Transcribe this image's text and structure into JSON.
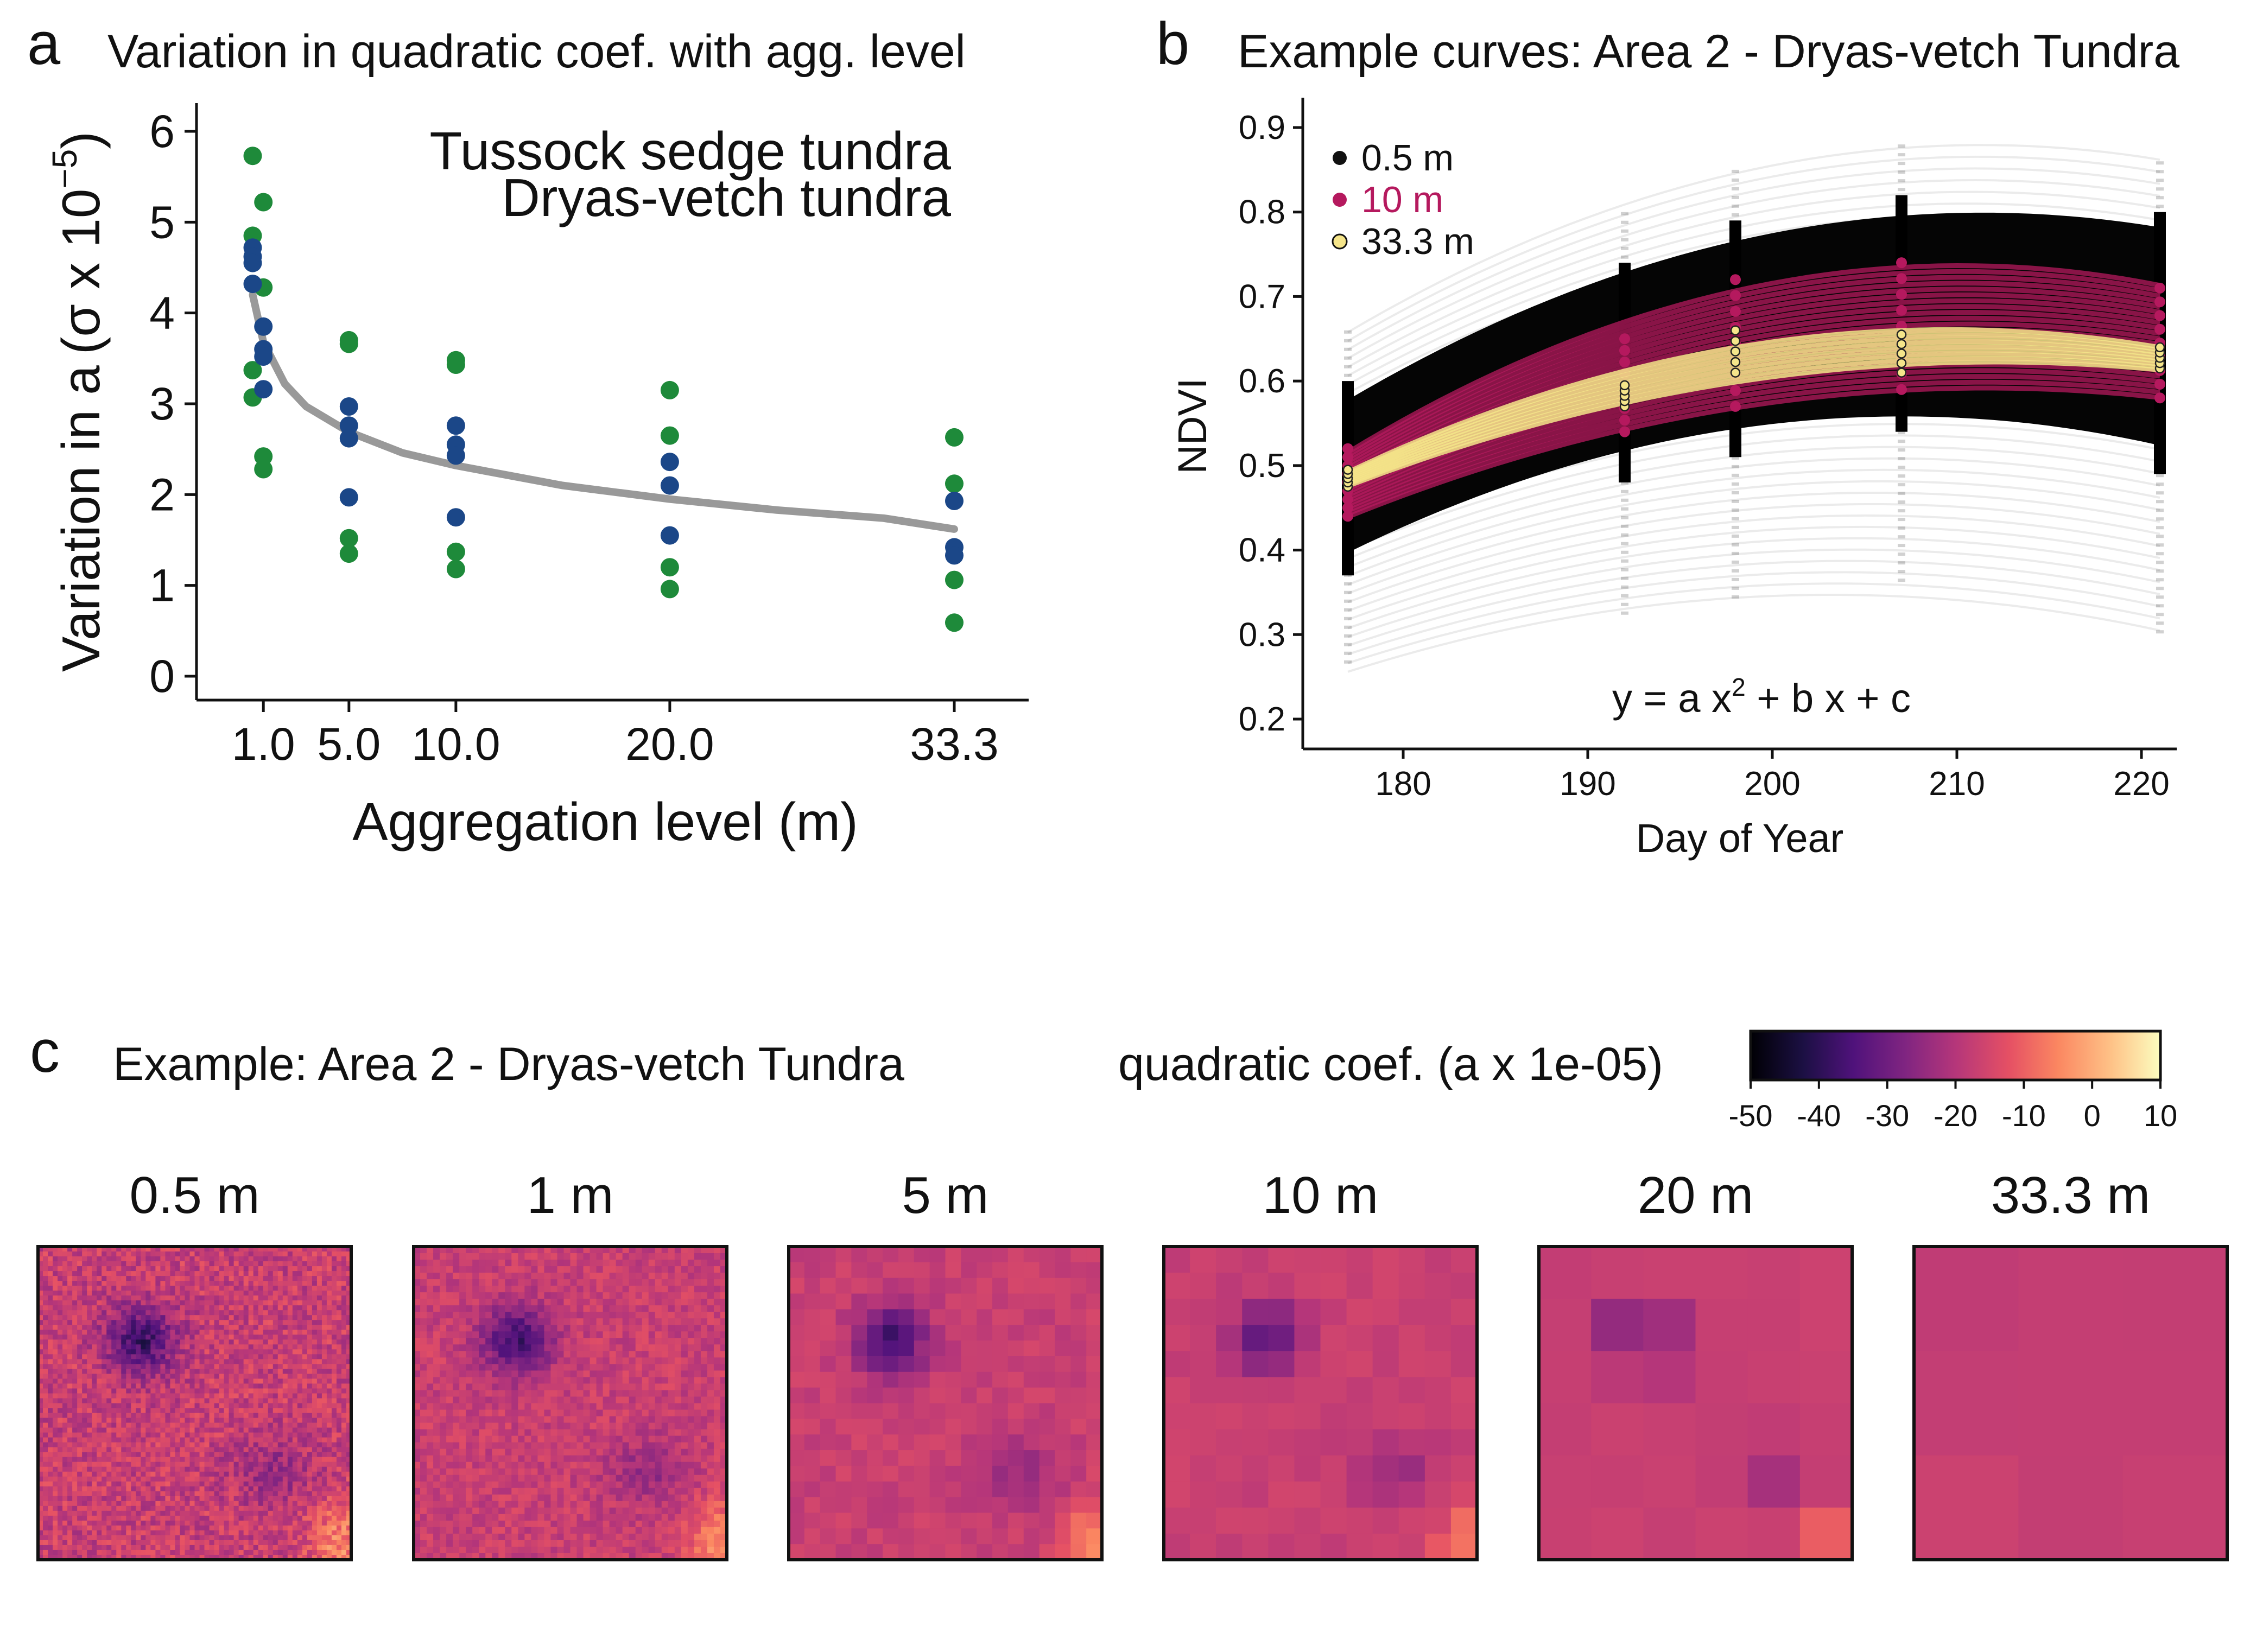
{
  "panel_a": {
    "letter": "a",
    "title": "Variation in quadratic coef. with agg. level",
    "ylabel_main": "Variation in a",
    "ylabel_paren": "(σ x 10",
    "ylabel_exp": "−5",
    "ylabel_close": ")",
    "xlabel": "Aggregation level (m)"
  },
  "panel_b": {
    "letter": "b",
    "title": "Example curves: Area 2 - Dryas-vetch Tundra",
    "xlabel": "Day of Year",
    "ylabel": "NDVI",
    "equation_main": "y = a x",
    "equation_exp": "2",
    "equation_rest": " + b x + c"
  },
  "panel_c": {
    "letter": "c",
    "title": "Example: Area 2 - Dryas-vetch Tundra",
    "colorbar_title": "quadratic coef. (a x 1e-05)",
    "colorbar_ticks": [
      "-50",
      "-40",
      "-30",
      "-20",
      "-10",
      "0",
      "10"
    ],
    "colorbar_range": [
      -50,
      10
    ],
    "colormap": "magma",
    "scales": [
      "0.5 m",
      "1 m",
      "5 m",
      "10 m",
      "20 m",
      "33.3 m"
    ],
    "grid_cells": [
      64,
      48,
      20,
      12,
      6,
      3
    ]
  },
  "chart_data": [
    {
      "type": "scatter",
      "xlim": [
        0,
        36
      ],
      "ylim": [
        0,
        6.3
      ],
      "x_ticks": [
        1.0,
        5.0,
        10.0,
        20.0,
        33.3
      ],
      "x_tick_labels": [
        "1.0",
        "5.0",
        "10.0",
        "20.0",
        "33.3"
      ],
      "y_ticks": [
        0,
        1,
        2,
        3,
        4,
        5,
        6
      ],
      "y_tick_labels": [
        "0",
        "1",
        "2",
        "3",
        "4",
        "5",
        "6"
      ],
      "legend_position": "top-right",
      "grid": false,
      "series": [
        {
          "name": "Tussock sedge tundra",
          "color": "#1e8a3a",
          "points": [
            [
              0.5,
              5.73
            ],
            [
              0.5,
              4.85
            ],
            [
              0.5,
              3.37
            ],
            [
              0.5,
              3.07
            ],
            [
              1.0,
              5.22
            ],
            [
              1.0,
              4.28
            ],
            [
              1.0,
              2.42
            ],
            [
              1.0,
              2.28
            ],
            [
              5.0,
              3.7
            ],
            [
              5.0,
              3.66
            ],
            [
              5.0,
              1.52
            ],
            [
              5.0,
              1.35
            ],
            [
              10.0,
              3.48
            ],
            [
              10.0,
              3.43
            ],
            [
              10.0,
              1.37
            ],
            [
              10.0,
              1.18
            ],
            [
              20.0,
              3.15
            ],
            [
              20.0,
              2.65
            ],
            [
              20.0,
              1.2
            ],
            [
              20.0,
              0.96
            ],
            [
              33.3,
              2.63
            ],
            [
              33.3,
              2.12
            ],
            [
              33.3,
              1.06
            ],
            [
              33.3,
              0.59
            ]
          ]
        },
        {
          "name": "Dryas-vetch tundra",
          "color": "#1b4788",
          "points": [
            [
              0.5,
              4.72
            ],
            [
              0.5,
              4.62
            ],
            [
              0.5,
              4.55
            ],
            [
              0.5,
              4.32
            ],
            [
              1.0,
              3.85
            ],
            [
              1.0,
              3.6
            ],
            [
              1.0,
              3.52
            ],
            [
              1.0,
              3.16
            ],
            [
              5.0,
              2.97
            ],
            [
              5.0,
              2.76
            ],
            [
              5.0,
              2.62
            ],
            [
              5.0,
              1.97
            ],
            [
              10.0,
              2.76
            ],
            [
              10.0,
              2.55
            ],
            [
              10.0,
              2.43
            ],
            [
              10.0,
              1.75
            ],
            [
              20.0,
              2.36
            ],
            [
              20.0,
              2.1
            ],
            [
              20.0,
              1.55
            ],
            [
              33.3,
              1.93
            ],
            [
              33.3,
              1.42
            ],
            [
              33.3,
              1.33
            ]
          ]
        },
        {
          "name": "",
          "type": "line",
          "color": "#999999",
          "x": [
            0.5,
            1,
            2,
            3,
            5,
            7.5,
            10,
            15,
            20,
            25,
            30,
            33.3
          ],
          "y": [
            4.2,
            3.68,
            3.22,
            2.97,
            2.69,
            2.46,
            2.32,
            2.1,
            1.95,
            1.83,
            1.74,
            1.62
          ]
        }
      ]
    },
    {
      "type": "line",
      "xlim": [
        175,
        223
      ],
      "ylim": [
        0.18,
        0.92
      ],
      "x_ticks": [
        180,
        190,
        200,
        210,
        220
      ],
      "x_tick_labels": [
        "180",
        "190",
        "200",
        "210",
        "220"
      ],
      "y_ticks": [
        0.2,
        0.3,
        0.4,
        0.5,
        0.6,
        0.7,
        0.8,
        0.9
      ],
      "y_tick_labels": [
        "0.2",
        "0.3",
        "0.4",
        "0.5",
        "0.6",
        "0.7",
        "0.8",
        "0.9"
      ],
      "observation_days": [
        177,
        192,
        198,
        207,
        221
      ],
      "legend_position": "top-left",
      "series": [
        {
          "name": "0.5 m",
          "color": "#111111",
          "band_low": [
            0.4,
            0.51,
            0.54,
            0.57,
            0.52
          ],
          "band_high": [
            0.58,
            0.72,
            0.77,
            0.8,
            0.78
          ],
          "faint_low": [
            0.26,
            0.32,
            0.34,
            0.36,
            0.3
          ],
          "faint_high": [
            0.66,
            0.8,
            0.85,
            0.88,
            0.86
          ]
        },
        {
          "name": "10 m",
          "color": "#b5195e",
          "band_low": [
            0.44,
            0.54,
            0.57,
            0.59,
            0.58
          ],
          "band_high": [
            0.52,
            0.65,
            0.72,
            0.74,
            0.71
          ]
        },
        {
          "name": "33.3 m",
          "color": "#f5e58a",
          "band_low": [
            0.475,
            0.57,
            0.61,
            0.61,
            0.615
          ],
          "band_high": [
            0.495,
            0.595,
            0.66,
            0.655,
            0.64
          ]
        }
      ]
    }
  ]
}
